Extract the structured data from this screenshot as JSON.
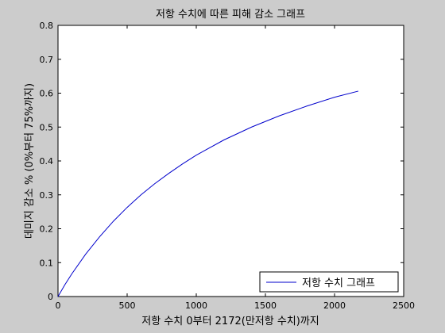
{
  "chart_data": {
    "type": "line",
    "title": "저항 수치에 따른 피해 감소 그래프",
    "xlabel": "저항 수치 0부터 2172(만저항 수치)까지",
    "ylabel": "데미지 감소 % (0%부터 75%까지)",
    "xlim": [
      0,
      2500
    ],
    "ylim": [
      0,
      0.8
    ],
    "xticks": [
      0,
      500,
      1000,
      1500,
      2000,
      2500
    ],
    "yticks": [
      0,
      0.1,
      0.2,
      0.3,
      0.4,
      0.5,
      0.6,
      0.7,
      0.8
    ],
    "grid": false,
    "legend_position": "bottom-right",
    "series": [
      {
        "name": "저항 수치 그래프",
        "color": "#0000cc",
        "x": [
          0,
          50,
          100,
          200,
          300,
          400,
          500,
          600,
          700,
          800,
          900,
          1000,
          1200,
          1400,
          1600,
          1800,
          2000,
          2172
        ],
        "y": [
          0,
          0.035,
          0.067,
          0.125,
          0.176,
          0.222,
          0.263,
          0.3,
          0.333,
          0.363,
          0.391,
          0.417,
          0.462,
          0.5,
          0.533,
          0.562,
          0.588,
          0.606
        ]
      }
    ]
  }
}
